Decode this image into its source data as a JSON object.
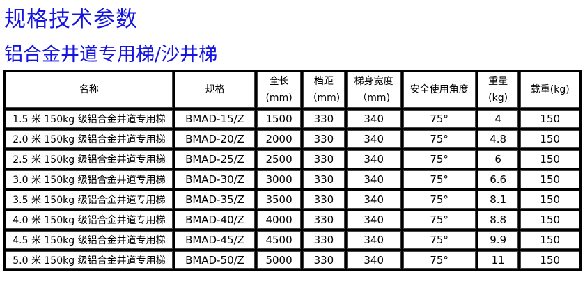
{
  "title": "规格技术参数",
  "subtitle": "铝合金井道专用梯/沙井梯",
  "table": {
    "headers": [
      {
        "line1": "名称",
        "line2": ""
      },
      {
        "line1": "规格",
        "line2": ""
      },
      {
        "line1": "全长",
        "line2": "(mm)"
      },
      {
        "line1": "档距",
        "line2": "（mm)"
      },
      {
        "line1": "梯身宽度",
        "line2": "（mm)"
      },
      {
        "line1": "安全使用角度",
        "line2": ""
      },
      {
        "line1": "重量",
        "line2": "(kg)"
      },
      {
        "line1": "载重(kg)",
        "line2": ""
      }
    ],
    "rows": [
      [
        "1.5 米 150kg 级铝合金井道专用梯",
        "BMAD-15/Z",
        "1500",
        "330",
        "340",
        "75°",
        "4",
        "150"
      ],
      [
        "2.0 米 150kg 级铝合金井道专用梯",
        "BMAD-20/Z",
        "2000",
        "330",
        "340",
        "75°",
        "4.8",
        "150"
      ],
      [
        "2.5 米 150kg 级铝合金井道专用梯",
        "BMAD-25/Z",
        "2500",
        "330",
        "340",
        "75°",
        "6",
        "150"
      ],
      [
        "3.0 米 150kg 级铝合金井道专用梯",
        "BMAD-30/Z",
        "3000",
        "330",
        "340",
        "75°",
        "6.6",
        "150"
      ],
      [
        "3.5 米 150kg 级铝合金井道专用梯",
        "BMAD-35/Z",
        "3500",
        "330",
        "340",
        "75°",
        "8.1",
        "150"
      ],
      [
        "4.0 米 150kg 级铝合金井道专用梯",
        "BMAD-40/Z",
        "4000",
        "330",
        "340",
        "75°",
        "8.8",
        "150"
      ],
      [
        "4.5 米 150kg 级铝合金井道专用梯",
        "BMAD-45/Z",
        "4500",
        "330",
        "340",
        "75°",
        "9.9",
        "150"
      ],
      [
        "5.0 米 150kg 级铝合金井道专用梯",
        "BMAD-50/Z",
        "5000",
        "330",
        "340",
        "75°",
        "11",
        "150"
      ]
    ]
  },
  "colors": {
    "title": "#1515e0",
    "border": "#000000"
  }
}
